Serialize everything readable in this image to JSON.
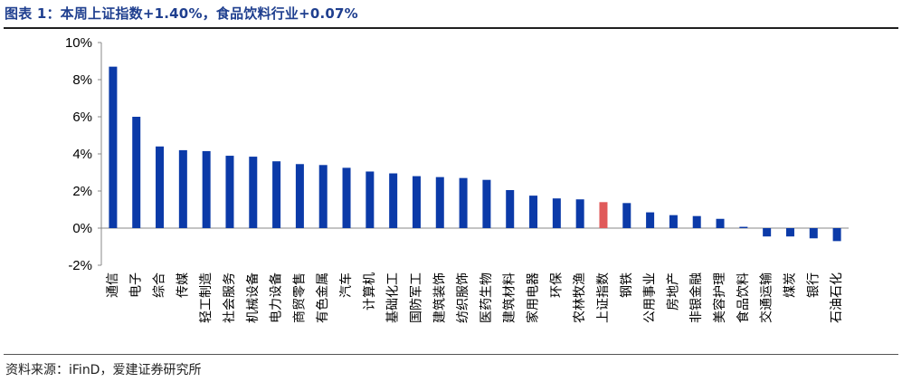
{
  "header": {
    "title": "图表 1：本周上证指数+1.40%，食品饮料行业+0.07%"
  },
  "footer": {
    "source": "资料来源：iFinD，爱建证券研究所"
  },
  "colors": {
    "bar": "#0b3aa8",
    "highlight": "#e05a5a"
  },
  "chart_data": {
    "type": "bar",
    "categories": [
      "通信",
      "电子",
      "综合",
      "传媒",
      "轻工制造",
      "社会服务",
      "机械设备",
      "电力设备",
      "商贸零售",
      "有色金属",
      "汽车",
      "计算机",
      "基础化工",
      "国防军工",
      "建筑装饰",
      "纺织服饰",
      "医药生物",
      "建筑材料",
      "家用电器",
      "环保",
      "农林牧渔",
      "上证指数",
      "钢铁",
      "公用事业",
      "房地产",
      "非银金融",
      "美容护理",
      "食品饮料",
      "交通运输",
      "煤炭",
      "银行",
      "石油石化"
    ],
    "values": [
      8.7,
      6.0,
      4.4,
      4.2,
      4.15,
      3.9,
      3.85,
      3.6,
      3.45,
      3.4,
      3.25,
      3.05,
      2.95,
      2.8,
      2.75,
      2.7,
      2.6,
      2.05,
      1.75,
      1.6,
      1.55,
      1.4,
      1.35,
      0.85,
      0.7,
      0.65,
      0.5,
      0.07,
      -0.45,
      -0.45,
      -0.55,
      -0.7
    ],
    "highlight": "上证指数",
    "ylim": [
      -2,
      10
    ],
    "yticks": [
      -2,
      0,
      2,
      4,
      6,
      8,
      10
    ],
    "ytick_suffix": "%"
  }
}
